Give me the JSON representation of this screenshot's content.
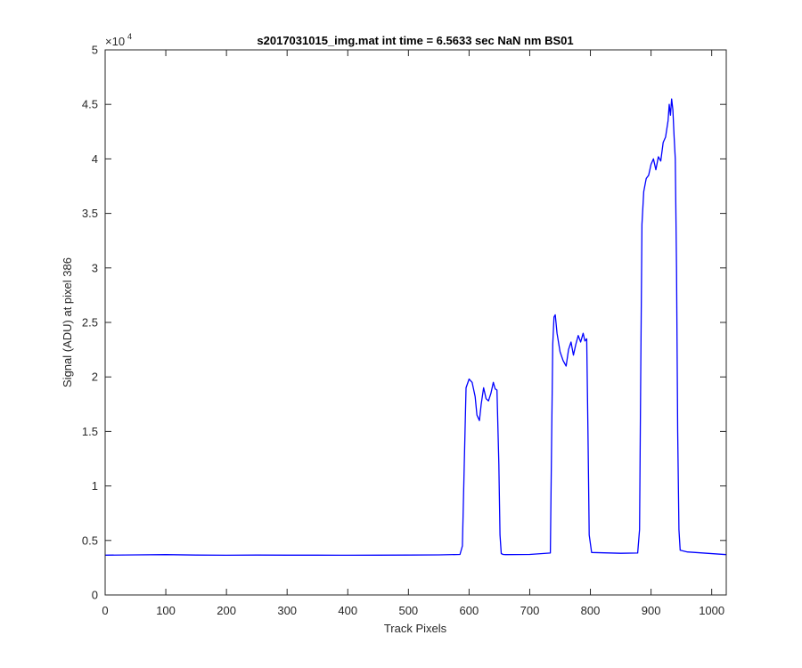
{
  "chart_data": {
    "type": "line",
    "title": "s2017031015_img.mat int time = 6.5633 sec  NaN nm BS01",
    "xlabel": "Track Pixels",
    "ylabel": "Signal (ADU) at pixel 386",
    "y_multiplier": {
      "base": "×10",
      "exponent": "4"
    },
    "xlim": [
      0,
      1024
    ],
    "ylim": [
      0,
      50000
    ],
    "x_ticks": [
      0,
      100,
      200,
      300,
      400,
      500,
      600,
      700,
      800,
      900,
      1000
    ],
    "x_tick_labels": [
      "0",
      "100",
      "200",
      "300",
      "400",
      "500",
      "600",
      "700",
      "800",
      "900",
      "1000"
    ],
    "y_ticks": [
      0,
      5000,
      10000,
      15000,
      20000,
      25000,
      30000,
      35000,
      40000,
      45000,
      50000
    ],
    "y_tick_labels": [
      "0",
      "0.5",
      "1",
      "1.5",
      "2",
      "2.5",
      "3",
      "3.5",
      "4",
      "4.5",
      "5"
    ],
    "grid": false,
    "line_color": "#0000ff",
    "series": [
      {
        "x": [
          0,
          50,
          100,
          150,
          200,
          250,
          300,
          350,
          400,
          450,
          500,
          550,
          585,
          589,
          592,
          595,
          600,
          605,
          610,
          613,
          617,
          620,
          624,
          628,
          632,
          636,
          640,
          643,
          646,
          649,
          651,
          653,
          656,
          660,
          700,
          734,
          736,
          738,
          740,
          742,
          745,
          750,
          755,
          760,
          764,
          768,
          772,
          776,
          780,
          784,
          788,
          791,
          794,
          796,
          798,
          802,
          850,
          878,
          881,
          883,
          885,
          888,
          892,
          896,
          900,
          904,
          908,
          912,
          916,
          920,
          924,
          928,
          930,
          932,
          934,
          936,
          938,
          940,
          942,
          944,
          946,
          948,
          960,
          1024
        ],
        "y": [
          3650,
          3680,
          3700,
          3660,
          3640,
          3660,
          3650,
          3650,
          3640,
          3650,
          3660,
          3680,
          3720,
          4500,
          12000,
          19000,
          19800,
          19500,
          18200,
          16500,
          16000,
          17500,
          19000,
          18000,
          17800,
          18500,
          19500,
          18900,
          18800,
          12000,
          5500,
          3800,
          3720,
          3700,
          3720,
          3850,
          14000,
          23000,
          25500,
          25700,
          24000,
          22300,
          21500,
          21000,
          22500,
          23200,
          22000,
          23000,
          23800,
          23200,
          24000,
          23300,
          23500,
          15000,
          5500,
          3900,
          3820,
          3850,
          6000,
          20000,
          34000,
          37000,
          38200,
          38500,
          39500,
          40000,
          39000,
          40200,
          39800,
          41500,
          42000,
          43500,
          45000,
          44000,
          45500,
          44500,
          42000,
          40000,
          30000,
          15000,
          6000,
          4100,
          3950,
          3700
        ]
      }
    ]
  }
}
